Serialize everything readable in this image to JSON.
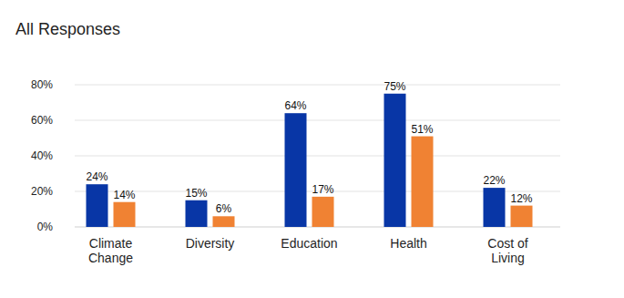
{
  "chart_data": {
    "type": "bar",
    "title": "All Responses",
    "categories": [
      "Climate\nChange",
      "Diversity",
      "Education",
      "Health",
      "Cost of\nLiving"
    ],
    "series": [
      {
        "color": "#0836a6",
        "values": [
          24,
          15,
          64,
          75,
          22
        ],
        "value_labels": [
          "24%",
          "15%",
          "64%",
          "75%",
          "22%"
        ]
      },
      {
        "color": "#f08233",
        "values": [
          14,
          6,
          17,
          51,
          12
        ],
        "value_labels": [
          "14%",
          "6%",
          "17%",
          "51%",
          "12%"
        ]
      }
    ],
    "ylim": [
      0,
      80
    ],
    "yticks": [
      {
        "value": 0,
        "label": "0%"
      },
      {
        "value": 20,
        "label": "20%"
      },
      {
        "value": 40,
        "label": "40%"
      },
      {
        "value": 60,
        "label": "60%"
      },
      {
        "value": 80,
        "label": "80%"
      }
    ],
    "grid": true,
    "data_labels": true
  }
}
